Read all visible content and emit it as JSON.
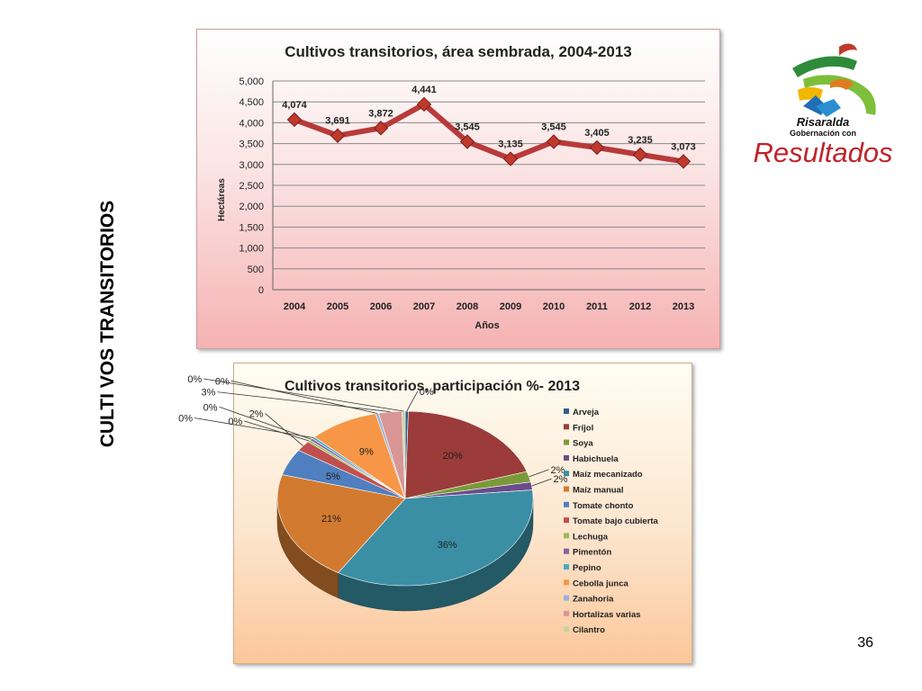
{
  "slide": {
    "side_title": "CULTI VOS TRANSITORIOS",
    "page_number": "36",
    "logo": {
      "line1": "Risaralda",
      "line2": "Gobernación con",
      "line3": "Resultados"
    }
  },
  "chart_data": [
    {
      "type": "line",
      "title": "Cultivos transitorios,  área sembrada,  2004-2013",
      "xlabel": "Años",
      "ylabel": "Hectáreas",
      "categories": [
        "2004",
        "2005",
        "2006",
        "2007",
        "2008",
        "2009",
        "2010",
        "2011",
        "2012",
        "2013"
      ],
      "values": [
        4074,
        3691,
        3872,
        4441,
        3545,
        3135,
        3545,
        3405,
        3235,
        3073
      ],
      "value_labels": [
        "4,074",
        "3,691",
        "3,872",
        "4,441",
        "3,545",
        "3,135",
        "3,545",
        "3,405",
        "3,235",
        "3,073"
      ],
      "ylim": [
        0,
        5000
      ],
      "yticks": [
        0,
        500,
        1000,
        1500,
        2000,
        2500,
        3000,
        3500,
        4000,
        4500,
        5000
      ],
      "ytick_labels": [
        "0",
        "500",
        "1,000",
        "1,500",
        "2,000",
        "2,500",
        "3,000",
        "3,500",
        "4,000",
        "4,500",
        "5,000"
      ],
      "grid": true,
      "line_color": "#b83a3a",
      "marker_color": "#c0392b"
    },
    {
      "type": "pie",
      "title": "Cultivos transitorios, participación %- 2013",
      "legend_position": "right",
      "slices": [
        {
          "label": "Arveja",
          "value": 0.4,
          "pct": "0%",
          "color": "#2f5f8a"
        },
        {
          "label": "Fríjol",
          "value": 20,
          "pct": "20%",
          "color": "#9b3b3a"
        },
        {
          "label": "Soya",
          "value": 2,
          "pct": "2%",
          "color": "#7a9a3a"
        },
        {
          "label": "Habichuela",
          "value": 1.5,
          "pct": "2%",
          "color": "#6b4c8a"
        },
        {
          "label": "Maíz  mecanizado",
          "value": 36,
          "pct": "36%",
          "color": "#3a8fa5"
        },
        {
          "label": "Maíz manual",
          "value": 21,
          "pct": "21%",
          "color": "#d27a30"
        },
        {
          "label": "Tomate chonto",
          "value": 5,
          "pct": "5%",
          "color": "#4f7fbf"
        },
        {
          "label": "Tomate bajo cubierta",
          "value": 2,
          "pct": "2%",
          "color": "#c0504d"
        },
        {
          "label": "Lechuga",
          "value": 0.4,
          "pct": "0%",
          "color": "#9bbb59"
        },
        {
          "label": "Pimentón",
          "value": 0.4,
          "pct": "0%",
          "color": "#8064a2"
        },
        {
          "label": "Pepino",
          "value": 0.4,
          "pct": "0%",
          "color": "#4bacc6"
        },
        {
          "label": "Cebolla junca",
          "value": 9,
          "pct": "9%",
          "color": "#f79646"
        },
        {
          "label": "Zanahoria",
          "value": 0.4,
          "pct": "0%",
          "color": "#95b3d7"
        },
        {
          "label": "Hortalizas varias",
          "value": 3,
          "pct": "3%",
          "color": "#d99694"
        },
        {
          "label": "Cilantro",
          "value": 0.4,
          "pct": "0%",
          "color": "#c3d69b"
        }
      ]
    }
  ]
}
